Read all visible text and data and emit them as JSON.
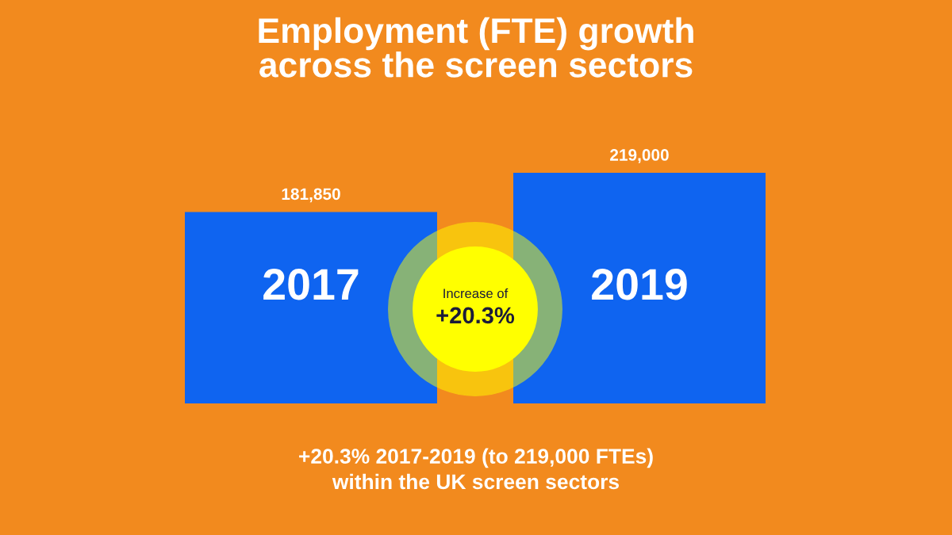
{
  "chart_data": {
    "type": "bar",
    "title": "Employment (FTE) growth\nacross the screen sectors",
    "categories": [
      "2017",
      "2019"
    ],
    "series": [
      {
        "color": "#0f64f0",
        "values": [
          181850,
          219000
        ],
        "value_labels": [
          "181,850",
          "219,000"
        ]
      }
    ],
    "annotations": [
      "Increase of",
      "+20.3%",
      "+20.3% 2017-2019 (to 219,000 FTEs)\nwithin the UK screen sectors"
    ]
  }
}
